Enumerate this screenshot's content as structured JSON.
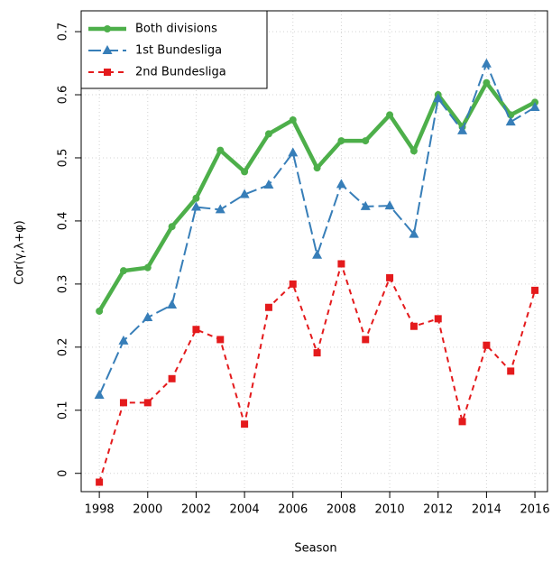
{
  "chart_data": {
    "type": "line",
    "x_label": "Season",
    "y_label": "Cor(γ,λ+φ)",
    "x": [
      1998,
      1999,
      2000,
      2001,
      2002,
      2003,
      2004,
      2005,
      2006,
      2007,
      2008,
      2009,
      2010,
      2011,
      2012,
      2013,
      2014,
      2015,
      2016
    ],
    "series": [
      {
        "name": "Both divisions",
        "color": "#4daf4a",
        "style": "solid",
        "marker": "circle",
        "values": [
          0.257,
          0.321,
          0.326,
          0.391,
          0.436,
          0.512,
          0.478,
          0.538,
          0.56,
          0.484,
          0.527,
          0.527,
          0.568,
          0.511,
          0.6,
          0.549,
          0.619,
          0.568,
          0.588
        ]
      },
      {
        "name": "1st Bundesliga",
        "color": "#377eb8",
        "style": "longdash",
        "marker": "triangle",
        "values": [
          0.124,
          0.21,
          0.247,
          0.267,
          0.422,
          0.418,
          0.442,
          0.457,
          0.508,
          0.346,
          0.458,
          0.423,
          0.424,
          0.379,
          0.594,
          0.543,
          0.649,
          0.557,
          0.58
        ]
      },
      {
        "name": "2nd Bundesliga",
        "color": "#e41a1c",
        "style": "dashed",
        "marker": "square",
        "values": [
          -0.014,
          0.112,
          0.112,
          0.15,
          0.228,
          0.212,
          0.078,
          0.263,
          0.3,
          0.191,
          0.332,
          0.212,
          0.31,
          0.233,
          0.245,
          0.082,
          0.203,
          0.162,
          0.29
        ]
      }
    ],
    "xlim": [
      1997.25,
      2016.52
    ],
    "ylim": [
      -0.029,
      0.733
    ],
    "xticks": [
      1998,
      2000,
      2002,
      2004,
      2006,
      2008,
      2010,
      2012,
      2014,
      2016
    ],
    "yticks": [
      0,
      0.1,
      0.2,
      0.3,
      0.4,
      0.5,
      0.6,
      0.7
    ],
    "grid": true,
    "legend": "top-left"
  }
}
